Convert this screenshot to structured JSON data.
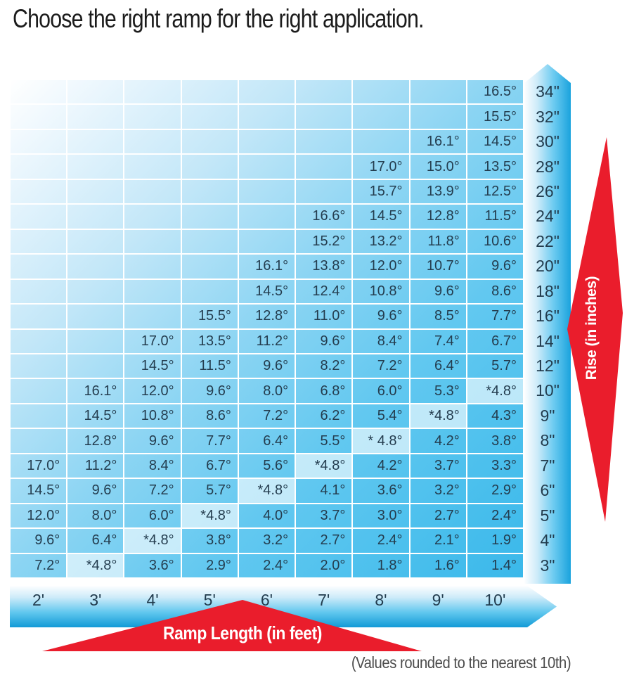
{
  "title": "Choose the right ramp for the right application.",
  "footnote": "(Values rounded to the nearest 10th)",
  "colors": {
    "accent_red": "#ea1d2c",
    "axis_blue": "#29abe2",
    "cell_blue": "#5bc6ef",
    "highlight_cell": "#d5edfb",
    "text_dark": "#243d4f"
  },
  "chart_data": {
    "type": "table",
    "x_axis_label": "Ramp Length (in feet)",
    "y_axis_label": "Rise (in inches)",
    "legend_note": "Cells marked with * (4.8°) are highlighted lighter blue",
    "columns": [
      "2'",
      "3'",
      "4'",
      "5'",
      "6'",
      "7'",
      "8'",
      "9'",
      "10'"
    ],
    "rows": [
      {
        "rise": "34\"",
        "cells": [
          "",
          "",
          "",
          "",
          "",
          "",
          "",
          "",
          "16.5°"
        ]
      },
      {
        "rise": "32\"",
        "cells": [
          "",
          "",
          "",
          "",
          "",
          "",
          "",
          "",
          "15.5°"
        ]
      },
      {
        "rise": "30\"",
        "cells": [
          "",
          "",
          "",
          "",
          "",
          "",
          "",
          "16.1°",
          "14.5°"
        ]
      },
      {
        "rise": "28\"",
        "cells": [
          "",
          "",
          "",
          "",
          "",
          "",
          "17.0°",
          "15.0°",
          "13.5°"
        ]
      },
      {
        "rise": "26\"",
        "cells": [
          "",
          "",
          "",
          "",
          "",
          "",
          "15.7°",
          "13.9°",
          "12.5°"
        ]
      },
      {
        "rise": "24\"",
        "cells": [
          "",
          "",
          "",
          "",
          "",
          "16.6°",
          "14.5°",
          "12.8°",
          "11.5°"
        ]
      },
      {
        "rise": "22\"",
        "cells": [
          "",
          "",
          "",
          "",
          "",
          "15.2°",
          "13.2°",
          "11.8°",
          "10.6°"
        ]
      },
      {
        "rise": "20\"",
        "cells": [
          "",
          "",
          "",
          "",
          "16.1°",
          "13.8°",
          "12.0°",
          "10.7°",
          "9.6°"
        ]
      },
      {
        "rise": "18\"",
        "cells": [
          "",
          "",
          "",
          "",
          "14.5°",
          "12.4°",
          "10.8°",
          "9.6°",
          "8.6°"
        ]
      },
      {
        "rise": "16\"",
        "cells": [
          "",
          "",
          "",
          "15.5°",
          "12.8°",
          "11.0°",
          "9.6°",
          "8.5°",
          "7.7°"
        ]
      },
      {
        "rise": "14\"",
        "cells": [
          "",
          "",
          "17.0°",
          "13.5°",
          "11.2°",
          "9.6°",
          "8.4°",
          "7.4°",
          "6.7°"
        ]
      },
      {
        "rise": "12\"",
        "cells": [
          "",
          "",
          "14.5°",
          "11.5°",
          "9.6°",
          "8.2°",
          "7.2°",
          "6.4°",
          "5.7°"
        ]
      },
      {
        "rise": "10\"",
        "cells": [
          "",
          "16.1°",
          "12.0°",
          "9.6°",
          "8.0°",
          "6.8°",
          "6.0°",
          "5.3°",
          "*4.8°"
        ]
      },
      {
        "rise": "9\"",
        "cells": [
          "",
          "14.5°",
          "10.8°",
          "8.6°",
          "7.2°",
          "6.2°",
          "5.4°",
          "*4.8°",
          "4.3°"
        ]
      },
      {
        "rise": "8\"",
        "cells": [
          "",
          "12.8°",
          "9.6°",
          "7.7°",
          "6.4°",
          "5.5°",
          "* 4.8°",
          "4.2°",
          "3.8°"
        ]
      },
      {
        "rise": "7\"",
        "cells": [
          "17.0°",
          "11.2°",
          "8.4°",
          "6.7°",
          "5.6°",
          "*4.8°",
          "4.2°",
          "3.7°",
          "3.3°"
        ]
      },
      {
        "rise": "6\"",
        "cells": [
          "14.5°",
          "9.6°",
          "7.2°",
          "5.7°",
          "*4.8°",
          "4.1°",
          "3.6°",
          "3.2°",
          "2.9°"
        ]
      },
      {
        "rise": "5\"",
        "cells": [
          "12.0°",
          "8.0°",
          "6.0°",
          "*4.8°",
          "4.0°",
          "3.7°",
          "3.0°",
          "2.7°",
          "2.4°"
        ]
      },
      {
        "rise": "4\"",
        "cells": [
          "9.6°",
          "6.4°",
          "*4.8°",
          "3.8°",
          "3.2°",
          "2.7°",
          "2.4°",
          "2.1°",
          "1.9°"
        ]
      },
      {
        "rise": "3\"",
        "cells": [
          "7.2°",
          "*4.8°",
          "3.6°",
          "2.9°",
          "2.4°",
          "2.0°",
          "1.8°",
          "1.6°",
          "1.4°"
        ]
      }
    ]
  }
}
